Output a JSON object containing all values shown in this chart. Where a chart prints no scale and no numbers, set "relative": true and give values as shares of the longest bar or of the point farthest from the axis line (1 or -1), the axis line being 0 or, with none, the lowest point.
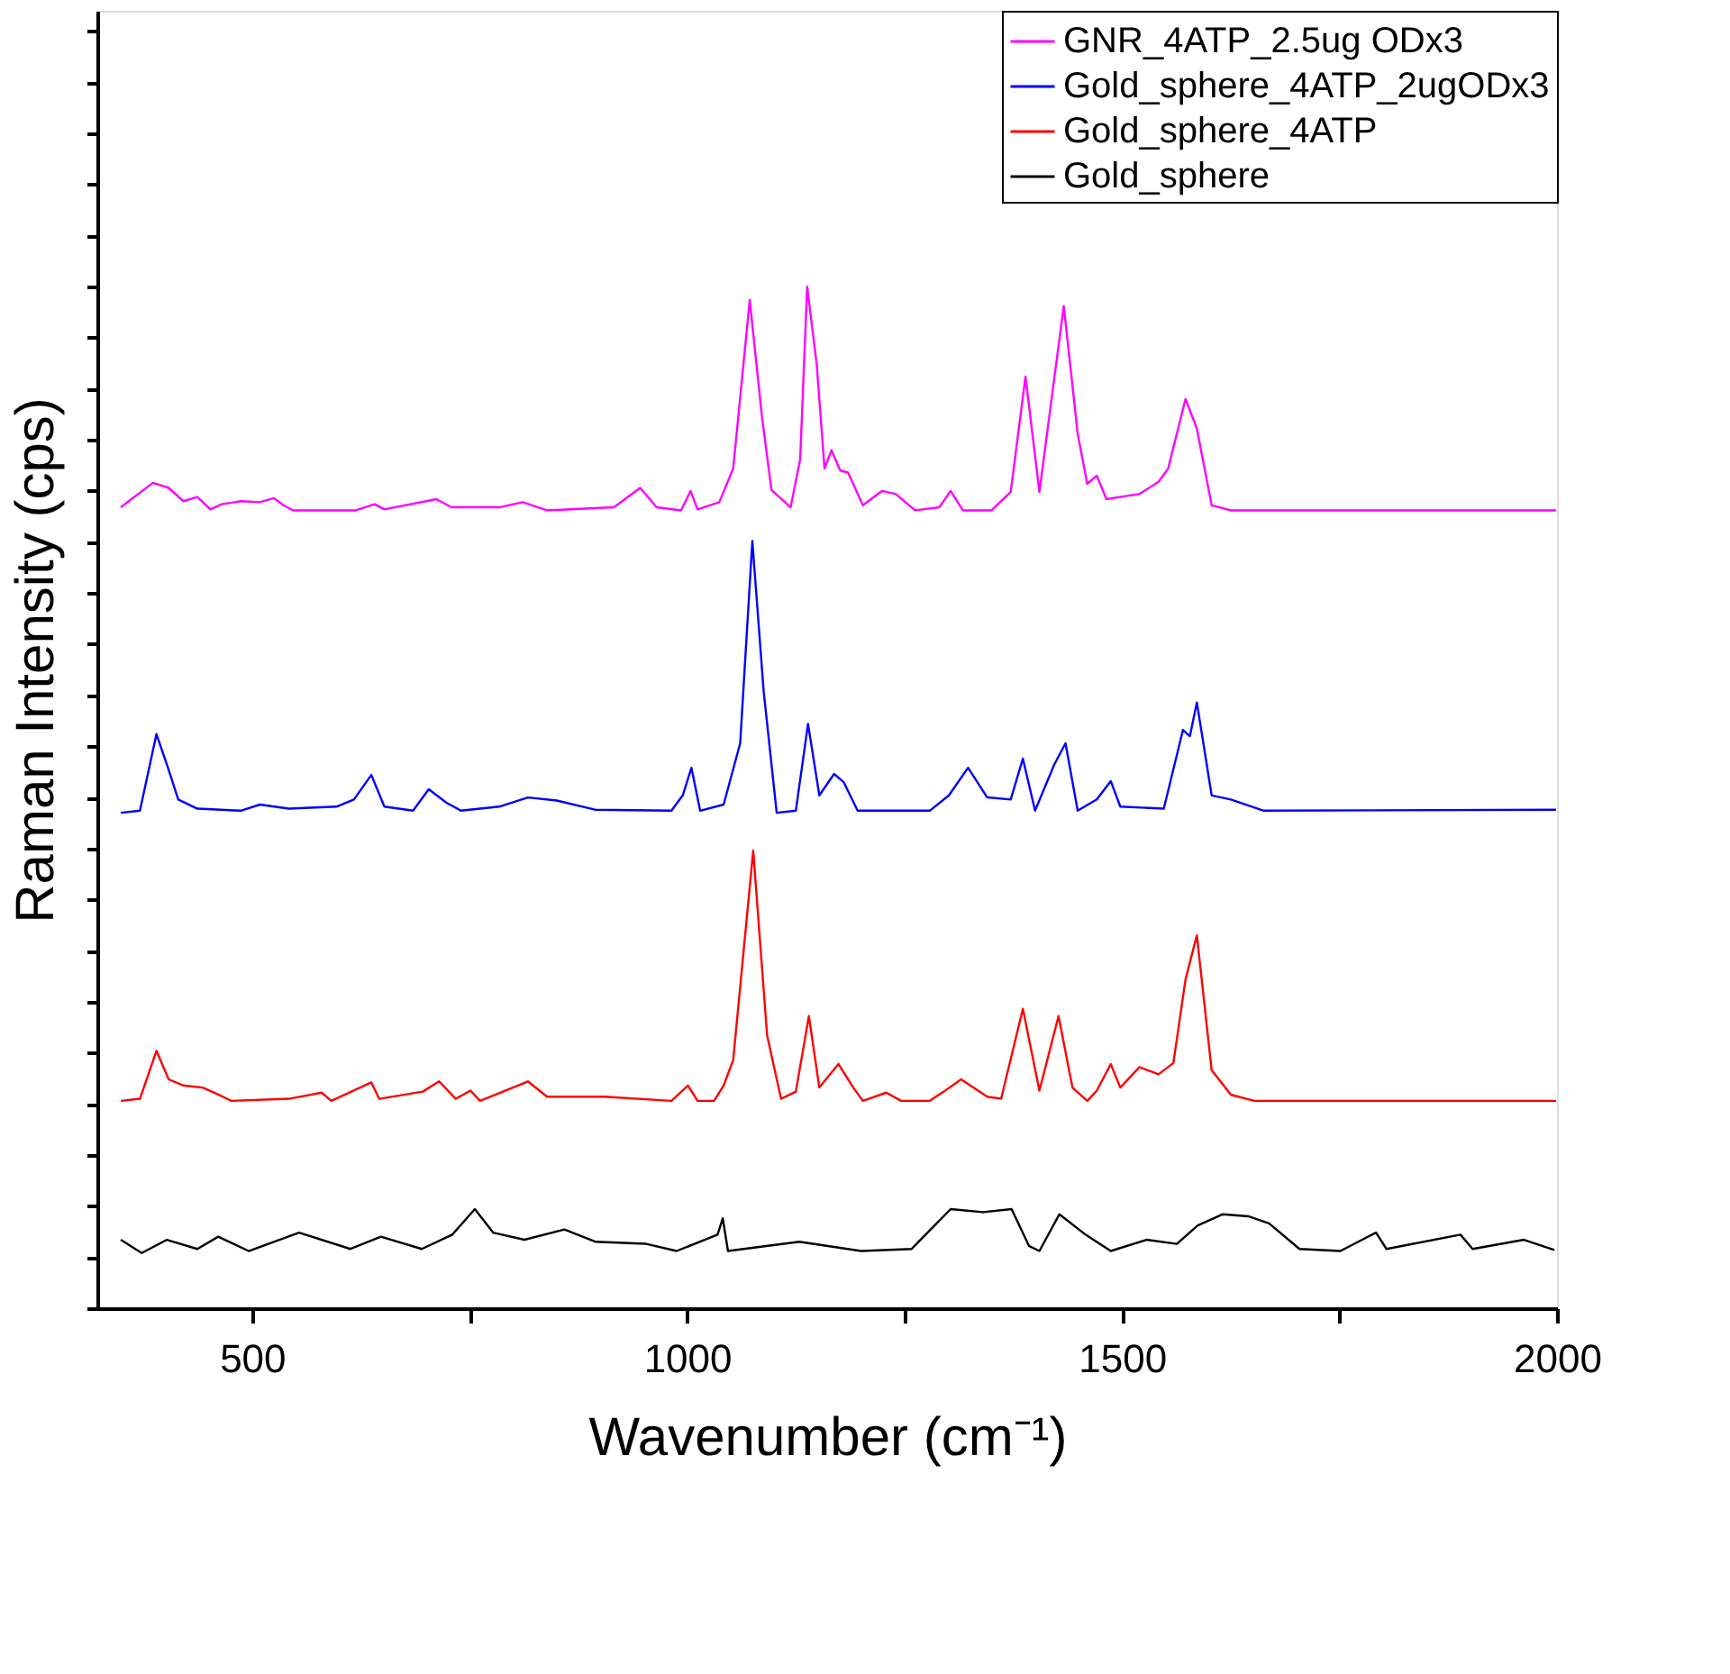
{
  "chart_data": {
    "type": "line",
    "relative": true,
    "xlabel": "Wavenumber (cm⁻¹)",
    "ylabel": "Raman Intensity (cps)",
    "xlim": [
      322,
      2000
    ],
    "xticks": [
      500,
      {
        "value": 750,
        "label": null
      },
      1000,
      {
        "value": 1250,
        "label": null
      },
      1500,
      {
        "value": 1750,
        "label": null
      },
      2000
    ],
    "tick_labels": "x",
    "legend": "top right",
    "grid": false,
    "line_style": "solid",
    "marker": "none",
    "series": [
      {
        "name": "GNR_4ATP_2.5ug ODx3",
        "color": "#ff00ff",
        "x": [
          349,
          386,
          404,
          421,
          437,
          452,
          465,
          487,
          509,
          525,
          536,
          547,
          619,
          641,
          652,
          712,
          729,
          784,
          811,
          839,
          916,
          946,
          965,
          993,
          1004,
          1012,
          1037,
          1053,
          1072,
          1086,
          1097,
          1119,
          1130,
          1138,
          1149,
          1158,
          1166,
          1176,
          1185,
          1202,
          1224,
          1240,
          1262,
          1290,
          1303,
          1317,
          1350,
          1372,
          1389,
          1405,
          1433,
          1449,
          1460,
          1471,
          1482,
          1504,
          1520,
          1542,
          1553,
          1573,
          1586,
          1603,
          1625,
          1999
        ],
        "values": [
          0.784,
          0.808,
          0.803,
          0.79,
          0.794,
          0.782,
          0.787,
          0.79,
          0.789,
          0.793,
          0.786,
          0.781,
          0.781,
          0.787,
          0.782,
          0.792,
          0.784,
          0.784,
          0.789,
          0.781,
          0.784,
          0.803,
          0.784,
          0.781,
          0.8,
          0.782,
          0.789,
          0.822,
          0.987,
          0.873,
          0.801,
          0.784,
          0.831,
          1,
          0.924,
          0.822,
          0.84,
          0.82,
          0.818,
          0.786,
          0.8,
          0.797,
          0.781,
          0.784,
          0.8,
          0.781,
          0.781,
          0.799,
          0.912,
          0.799,
          0.981,
          0.856,
          0.807,
          0.815,
          0.792,
          0.795,
          0.797,
          0.809,
          0.822,
          0.89,
          0.861,
          0.786,
          0.781,
          0.781
        ]
      },
      {
        "name": "Gold_sphere_4ATP_2ugODx3",
        "color": "#0000ff",
        "x": [
          349,
          371,
          390,
          404,
          415,
          437,
          487,
          509,
          542,
          597,
          617,
          637,
          652,
          685,
          703,
          723,
          740,
          784,
          817,
          850,
          894,
          982,
          995,
          1005,
          1015,
          1042,
          1061,
          1075,
          1088,
          1103,
          1125,
          1139,
          1152,
          1169,
          1180,
          1196,
          1279,
          1301,
          1323,
          1345,
          1372,
          1386,
          1400,
          1422,
          1435,
          1449,
          1471,
          1487,
          1498,
          1548,
          1570,
          1578,
          1586,
          1603,
          1625,
          1663,
          1999
        ],
        "values": [
          0.485,
          0.487,
          0.562,
          0.527,
          0.498,
          0.489,
          0.487,
          0.493,
          0.489,
          0.491,
          0.498,
          0.522,
          0.491,
          0.487,
          0.508,
          0.495,
          0.487,
          0.491,
          0.5,
          0.497,
          0.488,
          0.487,
          0.502,
          0.529,
          0.487,
          0.493,
          0.553,
          0.751,
          0.604,
          0.485,
          0.487,
          0.572,
          0.502,
          0.523,
          0.515,
          0.487,
          0.487,
          0.502,
          0.529,
          0.5,
          0.498,
          0.538,
          0.487,
          0.532,
          0.553,
          0.487,
          0.498,
          0.516,
          0.491,
          0.489,
          0.566,
          0.56,
          0.593,
          0.502,
          0.498,
          0.487,
          0.488
        ]
      },
      {
        "name": "Gold_sphere_4ATP",
        "color": "#ff0000",
        "x": [
          349,
          371,
          390,
          404,
          421,
          443,
          459,
          476,
          542,
          580,
          591,
          637,
          646,
          696,
          715,
          734,
          751,
          762,
          817,
          839,
          905,
          982,
          1001,
          1012,
          1031,
          1042,
          1053,
          1076,
          1092,
          1108,
          1125,
          1140,
          1152,
          1174,
          1191,
          1202,
          1229,
          1246,
          1279,
          1295,
          1315,
          1345,
          1361,
          1386,
          1405,
          1427,
          1443,
          1460,
          1471,
          1487,
          1498,
          1520,
          1542,
          1559,
          1573,
          1586,
          1603,
          1625,
          1652,
          1999
        ],
        "values": [
          0.203,
          0.205,
          0.252,
          0.224,
          0.218,
          0.216,
          0.21,
          0.203,
          0.205,
          0.211,
          0.203,
          0.221,
          0.205,
          0.212,
          0.222,
          0.205,
          0.213,
          0.203,
          0.222,
          0.207,
          0.207,
          0.203,
          0.218,
          0.203,
          0.203,
          0.218,
          0.243,
          0.448,
          0.267,
          0.205,
          0.212,
          0.286,
          0.216,
          0.239,
          0.216,
          0.203,
          0.211,
          0.203,
          0.203,
          0.212,
          0.224,
          0.207,
          0.205,
          0.293,
          0.213,
          0.286,
          0.216,
          0.203,
          0.213,
          0.239,
          0.216,
          0.236,
          0.229,
          0.24,
          0.322,
          0.365,
          0.233,
          0.209,
          0.203,
          0.203
        ]
      },
      {
        "name": "Gold_sphere",
        "color": "#000000",
        "x": [
          349,
          373,
          402,
          437,
          461,
          496,
          554,
          613,
          648,
          695,
          730,
          756,
          777,
          813,
          859,
          895,
          953,
          988,
          1035,
          1041,
          1047,
          1129,
          1200,
          1258,
          1303,
          1340,
          1373,
          1393,
          1405,
          1428,
          1458,
          1487,
          1528,
          1563,
          1587,
          1616,
          1645,
          1669,
          1704,
          1751,
          1792,
          1804,
          1889,
          1903,
          1962,
          1997
        ],
        "values": [
          0.067,
          0.054,
          0.067,
          0.058,
          0.07,
          0.056,
          0.074,
          0.058,
          0.07,
          0.058,
          0.072,
          0.097,
          0.074,
          0.067,
          0.077,
          0.065,
          0.063,
          0.056,
          0.072,
          0.088,
          0.056,
          0.065,
          0.056,
          0.058,
          0.097,
          0.094,
          0.097,
          0.061,
          0.056,
          0.092,
          0.072,
          0.056,
          0.067,
          0.063,
          0.081,
          0.092,
          0.09,
          0.083,
          0.058,
          0.056,
          0.074,
          0.058,
          0.072,
          0.058,
          0.067,
          0.057
        ]
      }
    ]
  }
}
